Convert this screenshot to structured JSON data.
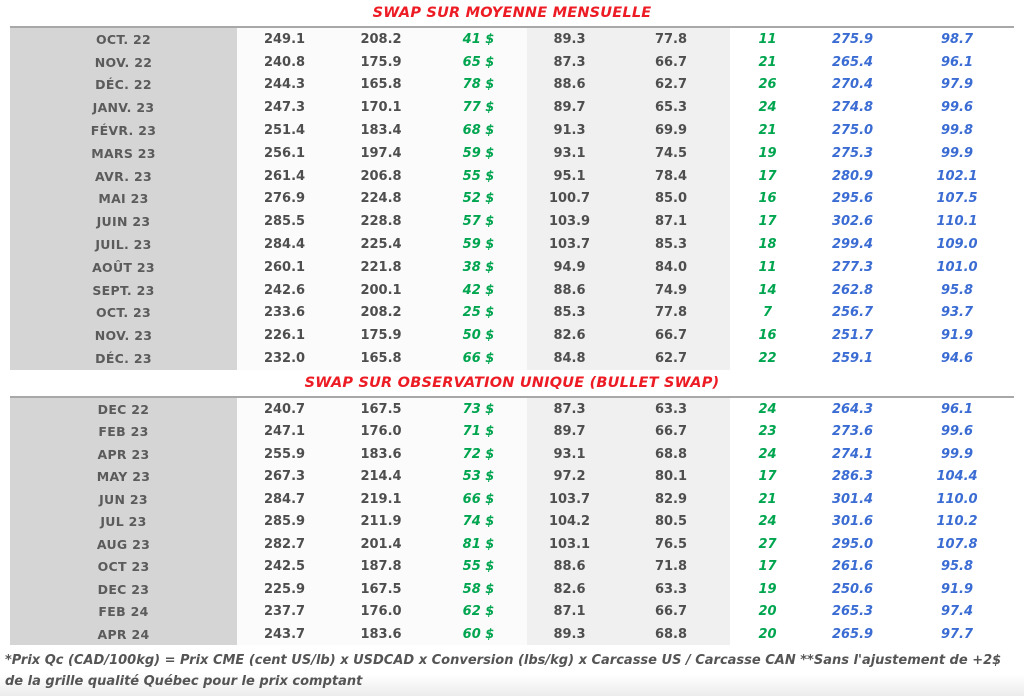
{
  "tables": [
    {
      "title": "SWAP SUR MOYENNE MENSUELLE",
      "rows": [
        [
          "OCT. 22",
          "249.1",
          "208.2",
          "41 $",
          "89.3",
          "77.8",
          "11",
          "275.9",
          "98.7"
        ],
        [
          "NOV. 22",
          "240.8",
          "175.9",
          "65 $",
          "87.3",
          "66.7",
          "21",
          "265.4",
          "96.1"
        ],
        [
          "DÉC. 22",
          "244.3",
          "165.8",
          "78 $",
          "88.6",
          "62.7",
          "26",
          "270.4",
          "97.9"
        ],
        [
          "JANV. 23",
          "247.3",
          "170.1",
          "77 $",
          "89.7",
          "65.3",
          "24",
          "274.8",
          "99.6"
        ],
        [
          "FÉVR. 23",
          "251.4",
          "183.4",
          "68 $",
          "91.3",
          "69.9",
          "21",
          "275.0",
          "99.8"
        ],
        [
          "MARS 23",
          "256.1",
          "197.4",
          "59 $",
          "93.1",
          "74.5",
          "19",
          "275.3",
          "99.9"
        ],
        [
          "AVR. 23",
          "261.4",
          "206.8",
          "55 $",
          "95.1",
          "78.4",
          "17",
          "280.9",
          "102.1"
        ],
        [
          "MAI 23",
          "276.9",
          "224.8",
          "52 $",
          "100.7",
          "85.0",
          "16",
          "295.6",
          "107.5"
        ],
        [
          "JUIN 23",
          "285.5",
          "228.8",
          "57 $",
          "103.9",
          "87.1",
          "17",
          "302.6",
          "110.1"
        ],
        [
          "JUIL. 23",
          "284.4",
          "225.4",
          "59 $",
          "103.7",
          "85.3",
          "18",
          "299.4",
          "109.0"
        ],
        [
          "AOÛT 23",
          "260.1",
          "221.8",
          "38 $",
          "94.9",
          "84.0",
          "11",
          "277.3",
          "101.0"
        ],
        [
          "SEPT. 23",
          "242.6",
          "200.1",
          "42 $",
          "88.6",
          "74.9",
          "14",
          "262.8",
          "95.8"
        ],
        [
          "OCT. 23",
          "233.6",
          "208.2",
          "25 $",
          "85.3",
          "77.8",
          "7",
          "256.7",
          "93.7"
        ],
        [
          "NOV. 23",
          "226.1",
          "175.9",
          "50 $",
          "82.6",
          "66.7",
          "16",
          "251.7",
          "91.9"
        ],
        [
          "DÉC. 23",
          "232.0",
          "165.8",
          "66 $",
          "84.8",
          "62.7",
          "22",
          "259.1",
          "94.6"
        ]
      ]
    },
    {
      "title": "SWAP SUR OBSERVATION UNIQUE (BULLET SWAP)",
      "rows": [
        [
          "DEC 22",
          "240.7",
          "167.5",
          "73 $",
          "87.3",
          "63.3",
          "24",
          "264.3",
          "96.1"
        ],
        [
          "FEB 23",
          "247.1",
          "176.0",
          "71 $",
          "89.7",
          "66.7",
          "23",
          "273.6",
          "99.6"
        ],
        [
          "APR 23",
          "255.9",
          "183.6",
          "72 $",
          "93.1",
          "68.8",
          "24",
          "274.1",
          "99.9"
        ],
        [
          "MAY 23",
          "267.3",
          "214.4",
          "53 $",
          "97.2",
          "80.1",
          "17",
          "286.3",
          "104.4"
        ],
        [
          "JUN 23",
          "284.7",
          "219.1",
          "66 $",
          "103.7",
          "82.9",
          "21",
          "301.4",
          "110.0"
        ],
        [
          "JUL 23",
          "285.9",
          "211.9",
          "74 $",
          "104.2",
          "80.5",
          "24",
          "301.6",
          "110.2"
        ],
        [
          "AUG 23",
          "282.7",
          "201.4",
          "81 $",
          "103.1",
          "76.5",
          "27",
          "295.0",
          "107.8"
        ],
        [
          "OCT 23",
          "242.5",
          "187.8",
          "55 $",
          "88.6",
          "71.8",
          "17",
          "261.6",
          "95.8"
        ],
        [
          "DEC 23",
          "225.9",
          "167.5",
          "58 $",
          "82.6",
          "63.3",
          "19",
          "250.6",
          "91.9"
        ],
        [
          "FEB 24",
          "237.7",
          "176.0",
          "62 $",
          "87.1",
          "66.7",
          "20",
          "265.3",
          "97.4"
        ],
        [
          "APR 24",
          "243.7",
          "183.6",
          "60 $",
          "89.3",
          "68.8",
          "20",
          "265.9",
          "97.7"
        ]
      ]
    }
  ],
  "footnote": "*Prix Qc (CAD/100kg) = Prix CME (cent US/lb) x USDCAD x Conversion (lbs/kg) x Carcasse US / Carcasse CAN **Sans l'ajustement de +2$ de la grille qualité Québec pour le prix comptant",
  "colors": {
    "title_red": "#ED1C24",
    "gain_green": "#00A54F",
    "projection_blue": "#3A6CD3",
    "month_column_gray": "#d5d5d5",
    "mid_column_gray": "#f0f0f0",
    "value_text": "#4E4E4E"
  }
}
